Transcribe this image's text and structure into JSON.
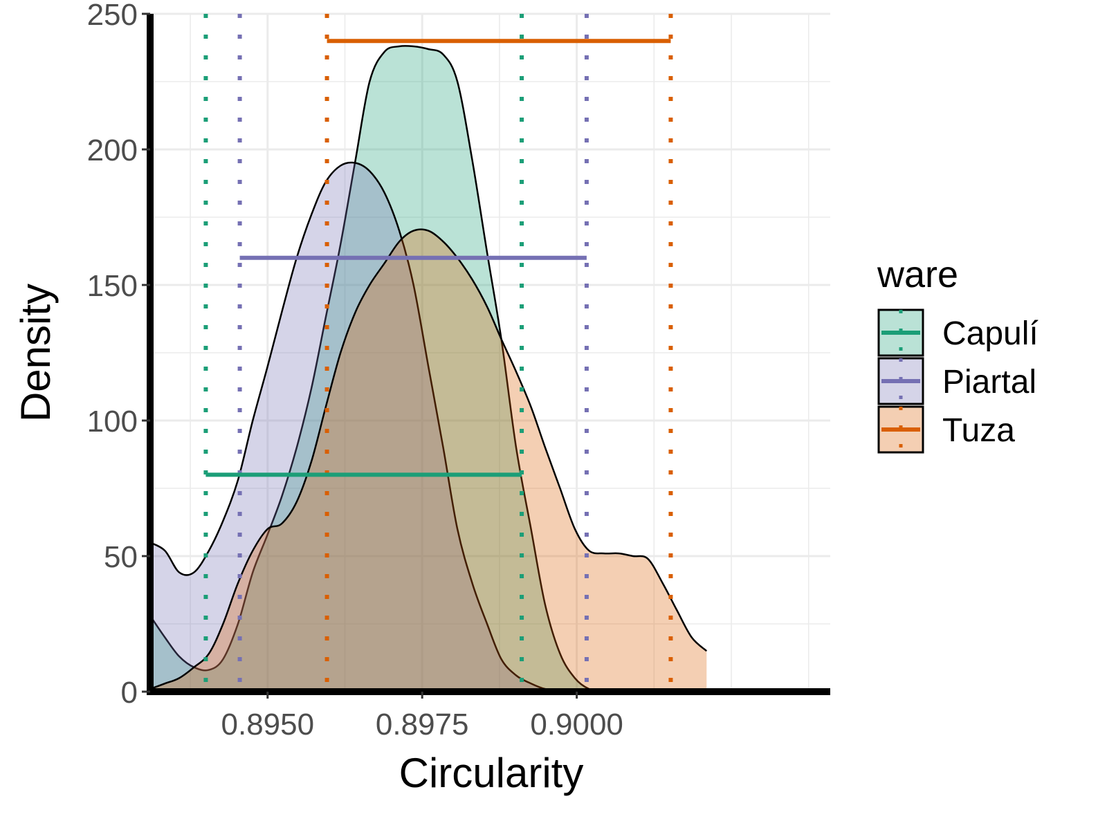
{
  "chart_data": {
    "type": "area",
    "title": "",
    "xlabel": "Circularity",
    "ylabel": "Density",
    "xlim": [
      0.8931,
      0.9041
    ],
    "ylim": [
      0,
      250
    ],
    "x_ticks": [
      "0.8950",
      "0.8975",
      "0.9000"
    ],
    "x_tick_values": [
      0.895,
      0.8975,
      0.9
    ],
    "y_ticks": [
      "0",
      "50",
      "100",
      "150",
      "200",
      "250"
    ],
    "y_tick_values": [
      0,
      50,
      100,
      150,
      200,
      250
    ],
    "grid": true,
    "legend": {
      "title": "ware",
      "position": "right"
    },
    "series": [
      {
        "name": "Capulí",
        "color": "#1b9e77",
        "fill": "#b8e2d4",
        "interval": {
          "low": 0.894,
          "high": 0.89911,
          "y": 80
        },
        "x": [
          0.8931,
          0.89334,
          0.89357,
          0.89381,
          0.89405,
          0.89428,
          0.89452,
          0.89476,
          0.895,
          0.89523,
          0.89547,
          0.89571,
          0.89594,
          0.89618,
          0.89642,
          0.89665,
          0.89689,
          0.89713,
          0.89736,
          0.8976,
          0.89784,
          0.89807,
          0.89831,
          0.89855,
          0.89878,
          0.89902,
          0.89926,
          0.89949,
          0.89973,
          0.89997,
          0.9002,
          0.90044,
          0.90068,
          0.90091,
          0.90115,
          0.90139,
          0.90162,
          0.90186,
          0.9021
        ],
        "y": [
          28,
          20,
          13,
          9,
          8,
          12,
          25,
          44,
          58,
          72,
          90,
          112,
          138,
          165,
          196,
          225,
          236,
          238,
          238,
          237,
          235,
          225,
          196,
          162,
          130,
          90,
          60,
          32,
          14,
          5,
          1,
          0.3,
          0,
          0,
          0,
          0,
          0,
          0,
          0
        ]
      },
      {
        "name": "Piartal",
        "color": "#7570b3",
        "fill": "#d3d1e8",
        "interval": {
          "low": 0.89455,
          "high": 0.90016,
          "y": 160
        },
        "x": [
          0.8931,
          0.89334,
          0.89357,
          0.89381,
          0.89405,
          0.89428,
          0.89452,
          0.89476,
          0.895,
          0.89523,
          0.89547,
          0.89571,
          0.89594,
          0.89618,
          0.89642,
          0.89665,
          0.89689,
          0.89713,
          0.89736,
          0.8976,
          0.89784,
          0.89807,
          0.89831,
          0.89855,
          0.89878,
          0.89902,
          0.89926,
          0.89949,
          0.89973,
          0.89997,
          0.9002,
          0.90044,
          0.90068,
          0.90091,
          0.90115,
          0.90139,
          0.90162,
          0.90186,
          0.9021
        ],
        "y": [
          55,
          52,
          44,
          44,
          52,
          63,
          78,
          100,
          120,
          140,
          160,
          176,
          188,
          194,
          195,
          192,
          184,
          170,
          150,
          120,
          90,
          60,
          40,
          25,
          12,
          6,
          3,
          1,
          0.5,
          0.3,
          0,
          0,
          0,
          0,
          0,
          0,
          0,
          0,
          0
        ]
      },
      {
        "name": "Tuza",
        "color": "#d95f02",
        "fill": "#f3cfb4",
        "interval": {
          "low": 0.89596,
          "high": 0.90152,
          "y": 240
        },
        "x": [
          0.8931,
          0.89334,
          0.89357,
          0.89381,
          0.89405,
          0.89428,
          0.89452,
          0.89476,
          0.895,
          0.89523,
          0.89547,
          0.89571,
          0.89594,
          0.89618,
          0.89642,
          0.89665,
          0.89689,
          0.89713,
          0.89736,
          0.8976,
          0.89784,
          0.89807,
          0.89831,
          0.89855,
          0.89878,
          0.89902,
          0.89926,
          0.89949,
          0.89973,
          0.89997,
          0.9002,
          0.90044,
          0.90068,
          0.90091,
          0.90115,
          0.90139,
          0.90162,
          0.90186,
          0.9021
        ],
        "y": [
          1,
          3,
          5,
          9,
          14,
          25,
          40,
          52,
          60,
          62,
          70,
          85,
          105,
          125,
          140,
          150,
          158,
          166,
          170,
          170,
          166,
          160,
          152,
          142,
          130,
          118,
          105,
          90,
          75,
          60,
          52,
          51,
          51,
          50,
          49,
          40,
          30,
          20,
          15
        ]
      }
    ]
  }
}
